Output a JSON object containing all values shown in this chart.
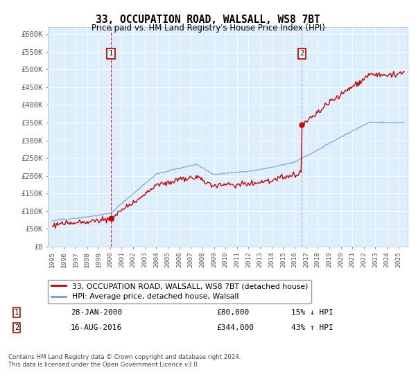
{
  "title": "33, OCCUPATION ROAD, WALSALL, WS8 7BT",
  "subtitle": "Price paid vs. HM Land Registry's House Price Index (HPI)",
  "ylabel_ticks": [
    "£0",
    "£50K",
    "£100K",
    "£150K",
    "£200K",
    "£250K",
    "£300K",
    "£350K",
    "£400K",
    "£450K",
    "£500K",
    "£550K",
    "£600K"
  ],
  "ytick_values": [
    0,
    50000,
    100000,
    150000,
    200000,
    250000,
    300000,
    350000,
    400000,
    450000,
    500000,
    550000,
    600000
  ],
  "ylim": [
    0,
    620000
  ],
  "xlim_start": 1994.6,
  "xlim_end": 2025.8,
  "transaction1": {
    "date_num": 2000.07,
    "price": 80000,
    "label": "1",
    "date_str": "28-JAN-2000",
    "note": "15% ↓ HPI"
  },
  "transaction2": {
    "date_num": 2016.62,
    "price": 344000,
    "label": "2",
    "date_str": "16-AUG-2016",
    "note": "43% ↑ HPI"
  },
  "legend_line1": "33, OCCUPATION ROAD, WALSALL, WS8 7BT (detached house)",
  "legend_line2": "HPI: Average price, detached house, Walsall",
  "footer1": "Contains HM Land Registry data © Crown copyright and database right 2024.",
  "footer2": "This data is licensed under the Open Government Licence v3.0.",
  "red_color": "#cc0000",
  "blue_color": "#7799cc",
  "bg_color": "#ddeeff",
  "grid_color": "#ffffff",
  "vline1_color": "#cc0000",
  "vline1_style": "--",
  "vline2_color": "#aaaacc",
  "vline2_style": "--",
  "box_color": "#cc0000"
}
